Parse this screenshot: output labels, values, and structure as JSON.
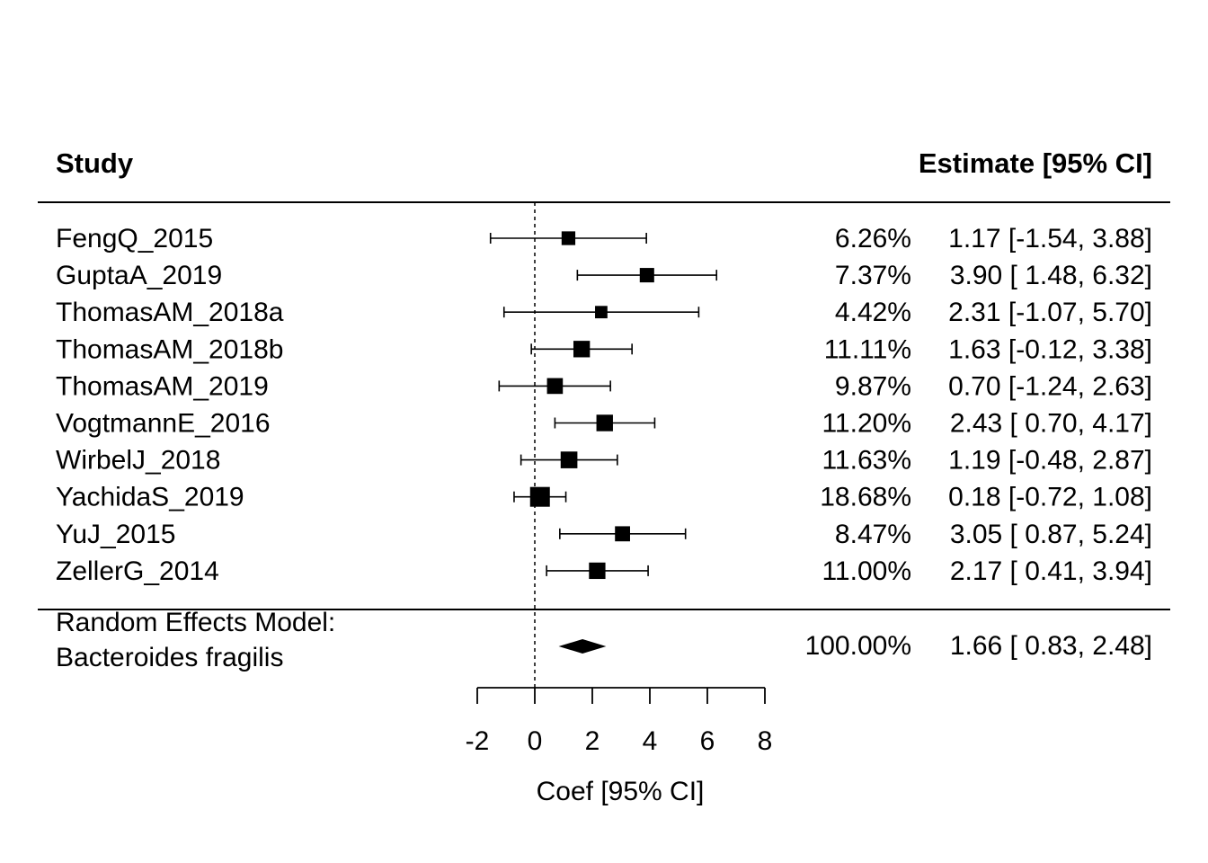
{
  "chart_data": {
    "type": "forest",
    "header_left": "Study",
    "header_right": "Estimate [95% CI]",
    "xlabel": "Coef [95% CI]",
    "xlim": [
      -2,
      8
    ],
    "xticks": [
      "-2",
      "0",
      "2",
      "4",
      "6",
      "8"
    ],
    "reference_line": 0,
    "studies": [
      {
        "name": "FengQ_2015",
        "estimate": 1.17,
        "ci_low": -1.54,
        "ci_high": 3.88,
        "weight": 6.26,
        "weight_label": "6.26%",
        "estimate_label": "1.17 [-1.54, 3.88]"
      },
      {
        "name": "GuptaA_2019",
        "estimate": 3.9,
        "ci_low": 1.48,
        "ci_high": 6.32,
        "weight": 7.37,
        "weight_label": "7.37%",
        "estimate_label": "3.90 [ 1.48, 6.32]"
      },
      {
        "name": "ThomasAM_2018a",
        "estimate": 2.31,
        "ci_low": -1.07,
        "ci_high": 5.7,
        "weight": 4.42,
        "weight_label": "4.42%",
        "estimate_label": "2.31 [-1.07, 5.70]"
      },
      {
        "name": "ThomasAM_2018b",
        "estimate": 1.63,
        "ci_low": -0.12,
        "ci_high": 3.38,
        "weight": 11.11,
        "weight_label": "11.11%",
        "estimate_label": "1.63 [-0.12, 3.38]"
      },
      {
        "name": "ThomasAM_2019",
        "estimate": 0.7,
        "ci_low": -1.24,
        "ci_high": 2.63,
        "weight": 9.87,
        "weight_label": "9.87%",
        "estimate_label": "0.70 [-1.24, 2.63]"
      },
      {
        "name": "VogtmannE_2016",
        "estimate": 2.43,
        "ci_low": 0.7,
        "ci_high": 4.17,
        "weight": 11.2,
        "weight_label": "11.20%",
        "estimate_label": "2.43 [ 0.70, 4.17]"
      },
      {
        "name": "WirbelJ_2018",
        "estimate": 1.19,
        "ci_low": -0.48,
        "ci_high": 2.87,
        "weight": 11.63,
        "weight_label": "11.63%",
        "estimate_label": "1.19 [-0.48, 2.87]"
      },
      {
        "name": "YachidaS_2019",
        "estimate": 0.18,
        "ci_low": -0.72,
        "ci_high": 1.08,
        "weight": 18.68,
        "weight_label": "18.68%",
        "estimate_label": "0.18 [-0.72, 1.08]"
      },
      {
        "name": "YuJ_2015",
        "estimate": 3.05,
        "ci_low": 0.87,
        "ci_high": 5.24,
        "weight": 8.47,
        "weight_label": "8.47%",
        "estimate_label": "3.05 [ 0.87, 5.24]"
      },
      {
        "name": "ZellerG_2014",
        "estimate": 2.17,
        "ci_low": 0.41,
        "ci_high": 3.94,
        "weight": 11.0,
        "weight_label": "11.00%",
        "estimate_label": "2.17 [ 0.41, 3.94]"
      }
    ],
    "summary": {
      "label_line1": "Random Effects Model:",
      "label_line2": "Bacteroides fragilis",
      "estimate": 1.66,
      "ci_low": 0.83,
      "ci_high": 2.48,
      "weight": 100.0,
      "weight_label": "100.00%",
      "estimate_label": "1.66 [ 0.83, 2.48]"
    }
  }
}
